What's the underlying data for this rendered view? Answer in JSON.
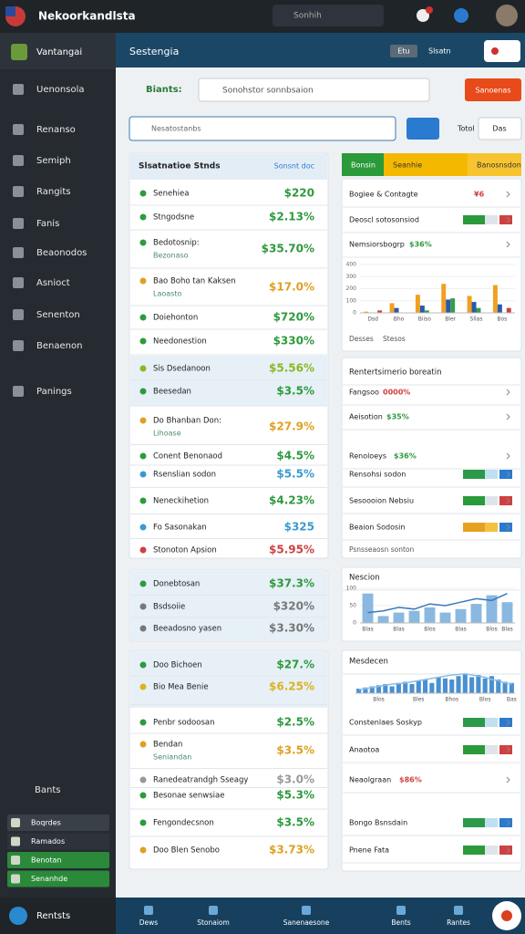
{
  "header": {
    "title": "Nekoorkandlsta",
    "search": "Sonhih"
  },
  "sidebar": {
    "brand": "Vantangai",
    "items": [
      "Uenonsola",
      "Renanso",
      "Semiph",
      "Rangits",
      "Fanis",
      "Beaonodos",
      "Asnioct",
      "Senenton",
      "Benaenon",
      "Panings"
    ],
    "section": "Bants",
    "list": [
      "Boqrdes",
      "Ramados",
      "Benotan",
      "Senanhde"
    ],
    "footer": "Rentsts"
  },
  "topbar": {
    "title": "Sestengia",
    "chip": "Etu",
    "dropdown": "Slsatn"
  },
  "toolbar": {
    "label": "Biants:",
    "search": "Sonohstor sonnbsaion",
    "button": "Sanoenas",
    "filter": "Nesatostanbs",
    "total": "Totol",
    "das": "Das"
  },
  "left_cards": [
    {
      "title": "Slsatnatioe Stnds",
      "link": "Sonsnt doc",
      "rows": [
        {
          "label": "Senehiea",
          "value": "$220",
          "color": "#2e9a3e"
        },
        {
          "label": "Stngodsne",
          "value": "$2.13%",
          "color": "#2e9a3e"
        },
        {
          "label": "Bedotosnip:",
          "sub": "Bezonaso",
          "value": "$35.70%",
          "color": "#2e9a3e"
        },
        {
          "label": "Bao Boho tan Kaksen",
          "sub": "Laoasto",
          "value": "$17.0%",
          "color": "#e0a020"
        },
        {
          "label": "Doiehonton",
          "value": "$720%",
          "color": "#2e9a3e"
        },
        {
          "label": "Needonestion",
          "value": "$330%",
          "color": "#2e9a3e"
        },
        {
          "label": "Sis Dsedanoon",
          "value": "$5.56%",
          "color": "#8ab820"
        },
        {
          "label": "Beesedan",
          "value": "$3.5%",
          "color": "#2e9a3e"
        },
        {
          "label": "Do Bhanban Don:",
          "sub": "Lihoase",
          "value": "$27.9%",
          "color": "#e0a020"
        },
        {
          "label": "Conent Benonaod",
          "value": "$4.5%",
          "color": "#2e9a3e"
        },
        {
          "label": "Rsenslian sodon",
          "value": "$5.5%",
          "color": "#3a9ad0"
        },
        {
          "label": "Neneckihetion",
          "value": "$4.23%",
          "color": "#2e9a3e"
        },
        {
          "label": "Fo Sasonakan",
          "value": "$325",
          "color": "#3a9ad0"
        },
        {
          "label": "Stonoton Apsion",
          "value": "$5.95%",
          "color": "#d04040"
        }
      ]
    },
    {
      "rows": [
        {
          "label": "Donebtosan",
          "value": "$37.3%",
          "color": "#2e9a3e"
        },
        {
          "label": "Bsdsoiie",
          "value": "$320%",
          "color": "#777777"
        },
        {
          "label": "Beeadosno yasen",
          "value": "$3.30%",
          "color": "#777777"
        }
      ]
    },
    {
      "rows": [
        {
          "label": "Doo Bichoen",
          "value": "$27.%",
          "color": "#2e9a3e"
        },
        {
          "label": "Bio Mea Benie",
          "value": "$6.25%",
          "color": "#e0b020"
        },
        {
          "label": "Penbr sodoosan",
          "value": "$2.5%",
          "color": "#2e9a3e"
        },
        {
          "label": "Bendan",
          "sub": "Seniandan",
          "value": "$3.5%",
          "color": "#e0a020"
        },
        {
          "label": "Ranedeatrandgh Sseagy",
          "value": "$3.0%",
          "color": "#999999"
        },
        {
          "label": "Besonae senwsiae",
          "value": "$5.3%",
          "color": "#2e9a3e"
        },
        {
          "label": "Fengondecsnon",
          "value": "$3.5%",
          "color": "#2e9a3e"
        },
        {
          "label": "Doo Blen Senobo",
          "value": "$3.73%",
          "color": "#e0a020"
        }
      ]
    }
  ],
  "right_tabs": [
    "Bonsin",
    "Seanhie",
    "Banosnsdon"
  ],
  "right_panels": [
    {
      "rows": [
        {
          "label": "Bogiee & Contagte",
          "value": "¥6",
          "color": "#d04040"
        },
        {
          "label": "Deoscl sotosonsiod"
        },
        {
          "label": "Nemsiorsbogrp",
          "value": "$36%",
          "color": "#2e9a3e"
        }
      ],
      "chart_data": {
        "type": "bar",
        "categories": [
          "Dsd",
          "Bho",
          "Biiso",
          "Bler",
          "Sllas",
          "Bos"
        ],
        "ylim": [
          0,
          400
        ],
        "yticks": [
          0,
          100,
          200,
          300,
          400
        ],
        "series": [
          {
            "color": "#f0a020",
            "values": [
              10,
              80,
              150,
              240,
              140,
              230
            ]
          },
          {
            "color": "#2a5aa8",
            "values": [
              0,
              40,
              60,
              110,
              90,
              70
            ]
          },
          {
            "color": "#3a9a4a",
            "values": [
              0,
              0,
              20,
              120,
              40,
              0
            ]
          },
          {
            "color": "#d04040",
            "values": [
              20,
              0,
              0,
              0,
              0,
              40
            ]
          }
        ]
      },
      "footer": [
        "Desses",
        "Stesos"
      ]
    },
    {
      "title": "Rentertsirnerio boreatin",
      "rows": [
        {
          "label": "Fangsoo",
          "value": "0000%",
          "color": "#d04040"
        },
        {
          "label": "Aeisotion",
          "value": "$35%",
          "color": "#2e9a3e"
        },
        {
          "label": "Renoloeys",
          "value": "$36%",
          "color": "#2e9a3e"
        },
        {
          "label": "Rensohsi sodon"
        },
        {
          "label": "Sesoooion Nebsiu"
        },
        {
          "label": "Beaion Sodosin"
        }
      ],
      "footer": [
        "Psnsseaosn sonton"
      ]
    },
    {
      "title": "Nescion",
      "chart_data": {
        "type": "bar",
        "categories": [
          "Blas",
          null,
          "Blas",
          null,
          "Blos",
          null,
          "Blas",
          null,
          "Blos",
          "Blas"
        ],
        "ylim": [
          0,
          100
        ],
        "yticks": [
          0,
          50,
          100
        ],
        "series": [
          {
            "color": "#8ab8e0",
            "values": [
              85,
              20,
              30,
              35,
              45,
              30,
              40,
              55,
              80,
              60
            ]
          },
          {
            "type": "line",
            "color": "#3a7ab8",
            "values": [
              30,
              35,
              45,
              40,
              55,
              50,
              60,
              70,
              65,
              85
            ]
          }
        ]
      }
    },
    {
      "title": "Mesdecen",
      "chart_data": {
        "type": "bar",
        "categories": [
          null,
          null,
          null,
          "Blos",
          null,
          null,
          null,
          null,
          null,
          "Bles",
          null,
          null,
          null,
          null,
          "Bhos",
          null,
          null,
          null,
          null,
          "Blos",
          null,
          null,
          null,
          "Bas"
        ],
        "ylim": [
          0,
          100
        ],
        "series": [
          {
            "color": "#4a90d0",
            "values": [
              20,
              25,
              30,
              35,
              40,
              30,
              45,
              50,
              40,
              55,
              60,
              45,
              70,
              65,
              60,
              75,
              85,
              70,
              80,
              65,
              75,
              60,
              50,
              45
            ]
          },
          {
            "type": "line",
            "color": "#8ac0e8",
            "values": [
              15,
              20,
              25,
              30,
              35,
              40,
              42,
              45,
              50,
              55,
              60,
              65,
              70,
              75,
              80,
              82,
              85,
              80,
              75,
              70,
              60,
              55,
              45,
              40
            ]
          }
        ]
      },
      "rows": [
        {
          "label": "Constenlaes Soskyp"
        },
        {
          "label": "Anaotoa"
        },
        {
          "label": "Neaolgraan",
          "value": "$86%",
          "color": "#d04040"
        },
        {
          "label": "Bongo Bsnsdain"
        },
        {
          "label": "Pnene Fata"
        }
      ]
    }
  ],
  "bottom_nav": [
    "Dews",
    "Stonaiom",
    "Sanenaesone",
    "Bents",
    "Rantes"
  ]
}
